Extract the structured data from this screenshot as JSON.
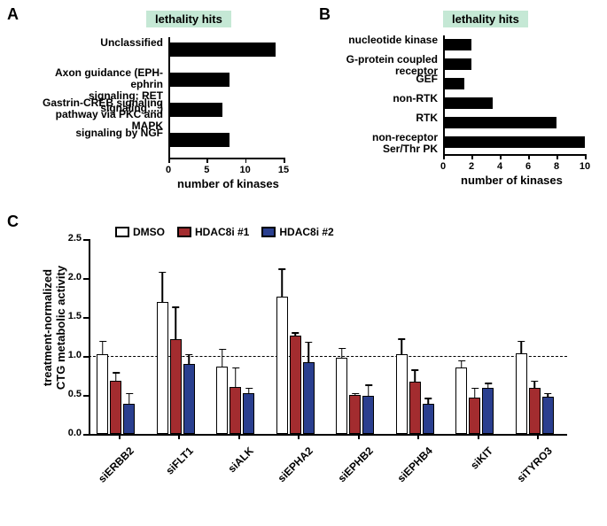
{
  "panelA": {
    "label": "A",
    "title": "lethality hits",
    "axis_title": "number of kinases",
    "xmax": 15,
    "xtick_step": 5,
    "bar_color": "#000000",
    "categories": [
      {
        "label": "Unclassified",
        "value": 14
      },
      {
        "label": "Axon guidance (EPH-ephrin\nsignaling; RET signaling;...)",
        "value": 8
      },
      {
        "label": "Gastrin-CREB signaling\npathway via PKC and MAPK",
        "value": 7
      },
      {
        "label": "signaling by NGF",
        "value": 8
      }
    ]
  },
  "panelB": {
    "label": "B",
    "title": "lethality hits",
    "axis_title": "number of kinases",
    "xmax": 10,
    "xtick_step": 2,
    "bar_color": "#000000",
    "categories": [
      {
        "label": "nucleotide kinase",
        "value": 2
      },
      {
        "label": "G-protein coupled\nreceptor",
        "value": 2
      },
      {
        "label": "GEF",
        "value": 1.5
      },
      {
        "label": "non-RTK",
        "value": 3.5
      },
      {
        "label": "RTK",
        "value": 8
      },
      {
        "label": "non-receptor\nSer/Thr PK",
        "value": 10
      }
    ]
  },
  "panelC": {
    "label": "C",
    "y_title": "treatment-normalized\nCTG metabolic activity",
    "ymax": 2.5,
    "ytick_step": 0.5,
    "series": [
      {
        "name": "DMSO",
        "color": "#ffffff"
      },
      {
        "name": "HDAC8i #1",
        "color": "#a32c2f"
      },
      {
        "name": "HDAC8i #2",
        "color": "#2a3f8f"
      }
    ],
    "baseline": 1.0,
    "groups": [
      {
        "label": "siERBB2",
        "values": [
          1.02,
          0.68,
          0.39
        ],
        "errors": [
          0.18,
          0.12,
          0.14
        ]
      },
      {
        "label": "siFLT1",
        "values": [
          1.69,
          1.22,
          0.9
        ],
        "errors": [
          0.4,
          0.42,
          0.13
        ]
      },
      {
        "label": "siALK",
        "values": [
          0.86,
          0.6,
          0.52
        ],
        "errors": [
          0.24,
          0.26,
          0.08
        ]
      },
      {
        "label": "siEPHA2",
        "values": [
          1.76,
          1.26,
          0.92
        ],
        "errors": [
          0.37,
          0.05,
          0.27
        ]
      },
      {
        "label": "siEPHB2",
        "values": [
          0.98,
          0.5,
          0.49
        ],
        "errors": [
          0.13,
          0.03,
          0.15
        ]
      },
      {
        "label": "siEPHB4",
        "values": [
          1.02,
          0.67,
          0.39
        ],
        "errors": [
          0.21,
          0.16,
          0.08
        ]
      },
      {
        "label": "siKIT",
        "values": [
          0.85,
          0.47,
          0.59
        ],
        "errors": [
          0.1,
          0.13,
          0.07
        ]
      },
      {
        "label": "siTYRO3",
        "values": [
          1.03,
          0.59,
          0.48
        ],
        "errors": [
          0.17,
          0.1,
          0.05
        ]
      }
    ]
  },
  "colors": {
    "lethality_bg": "#c5e8d5",
    "background": "#ffffff"
  }
}
